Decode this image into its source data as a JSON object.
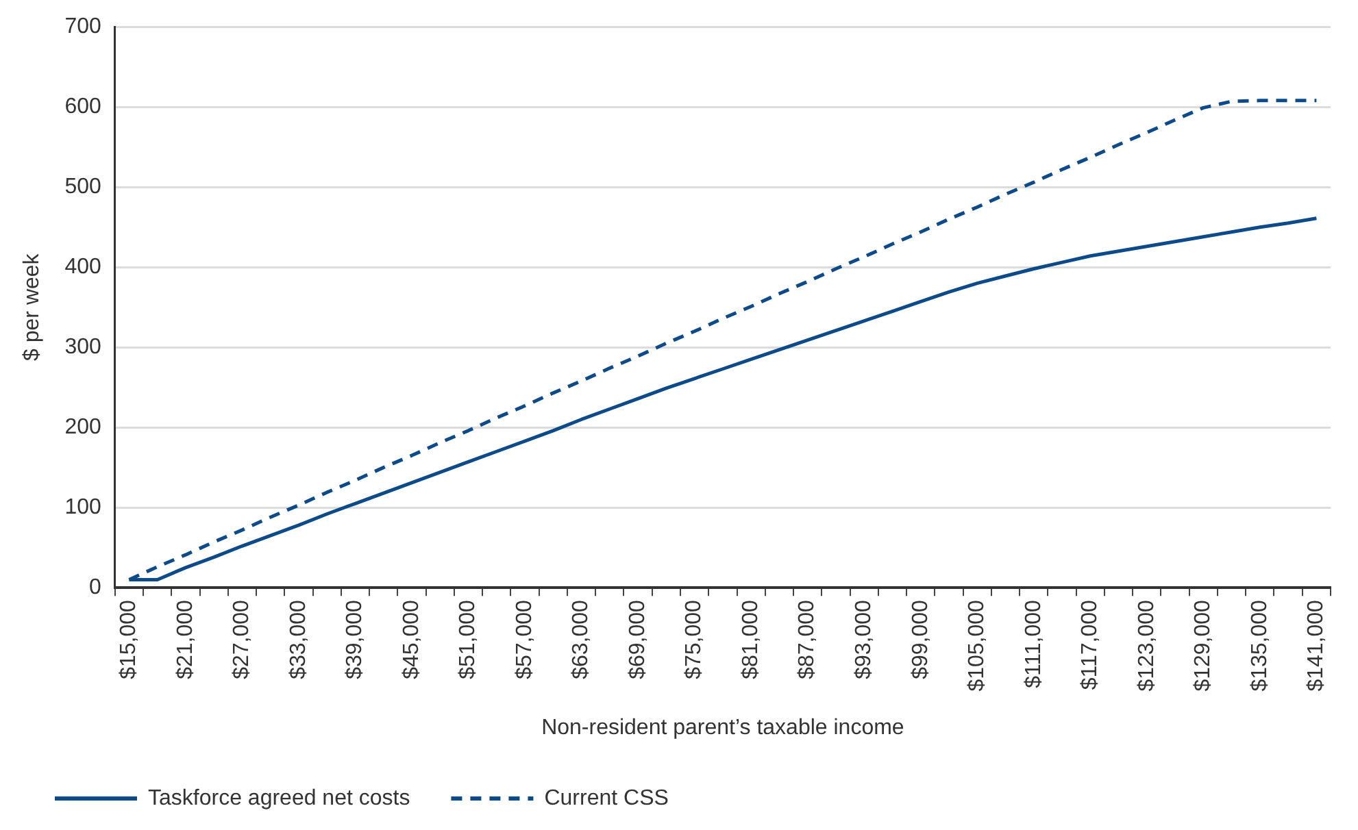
{
  "chart_data": {
    "type": "line",
    "xlabel": "Non-resident parent’s taxable income",
    "ylabel": "$ per week",
    "categories": [
      "$15,000",
      null,
      "$21,000",
      null,
      "$27,000",
      null,
      "$33,000",
      null,
      "$39,000",
      null,
      "$45,000",
      null,
      "$51,000",
      null,
      "$57,000",
      null,
      "$63,000",
      null,
      "$69,000",
      null,
      "$75,000",
      null,
      "$81,000",
      null,
      "$87,000",
      null,
      "$93,000",
      null,
      "$99,000",
      null,
      "$105,000",
      null,
      "$111,000",
      null,
      "$117,000",
      null,
      "$123,000",
      null,
      "$129,000",
      null,
      "$135,000",
      null,
      "$141,000"
    ],
    "series": [
      {
        "name": "Taskforce agreed net costs",
        "color": "#0c4a8a",
        "line_style": "solid",
        "values": [
          10,
          10,
          25,
          38,
          52,
          65,
          78,
          92,
          105,
          118,
          131,
          144,
          157,
          170,
          183,
          196,
          210,
          223,
          236,
          249,
          261,
          273,
          285,
          297,
          309,
          321,
          333,
          345,
          357,
          369,
          380,
          389,
          398,
          406,
          414,
          420,
          426,
          432,
          438,
          444,
          450,
          455,
          461
        ]
      },
      {
        "name": "Current CSS",
        "color": "#0c4a8a",
        "line_style": "dashed",
        "values": [
          10,
          26,
          41,
          57,
          72,
          88,
          103,
          119,
          134,
          150,
          165,
          181,
          196,
          212,
          227,
          243,
          258,
          274,
          289,
          305,
          320,
          336,
          351,
          367,
          382,
          398,
          413,
          429,
          444,
          460,
          475,
          491,
          506,
          522,
          537,
          553,
          568,
          584,
          599,
          607,
          608,
          608,
          608
        ]
      }
    ],
    "ylim": [
      0,
      700
    ],
    "yticks": [
      0,
      100,
      200,
      300,
      400,
      500,
      600,
      700
    ],
    "grid": "y",
    "legend": "bottom",
    "marker": "none"
  }
}
